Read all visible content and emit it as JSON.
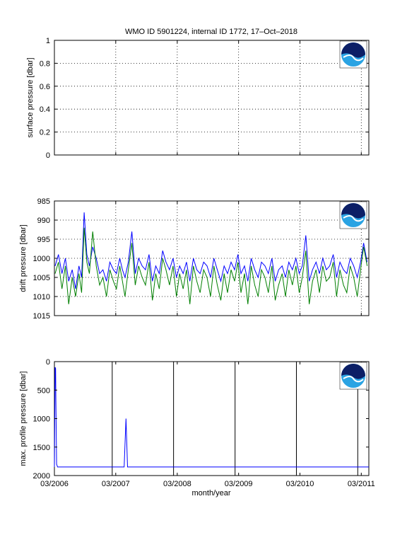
{
  "figure": {
    "title": "WMO ID 5901224, internal ID 1772, 17–Oct–2018",
    "xlabel": "month/year",
    "x_tick_labels": [
      "03/2006",
      "03/2007",
      "03/2008",
      "03/2009",
      "03/2010",
      "03/2011"
    ]
  },
  "colors": {
    "series_blue": "#0000ff",
    "series_green": "#007f00",
    "grid": "#000000",
    "logo_dark": "#0c1f66",
    "logo_light": "#2aa3e3"
  },
  "chart_data": [
    {
      "type": "line",
      "panel": "surface",
      "ylabel": "surface pressure [dbar]",
      "ylim": [
        0,
        1
      ],
      "y_ticks": [
        0,
        0.2,
        0.4,
        0.6,
        0.8,
        1
      ],
      "y_tick_labels": [
        "0",
        "0.2",
        "0.4",
        "0.6",
        "0.8",
        "1"
      ],
      "xlim": [
        "2006-03-01",
        "2011-04-15"
      ],
      "x_ticks": [
        "2006-03-01",
        "2007-03-01",
        "2008-03-01",
        "2009-03-01",
        "2010-03-01",
        "2011-03-01"
      ],
      "grid": true,
      "series": []
    },
    {
      "type": "line",
      "panel": "drift",
      "ylabel": "drift pressure [dbar]",
      "ylim": [
        1015,
        985
      ],
      "y_ticks": [
        985,
        990,
        995,
        1000,
        1005,
        1010,
        1015
      ],
      "y_tick_labels": [
        "985",
        "990",
        "995",
        "1000",
        "1005",
        "1010",
        "1015"
      ],
      "xlim": [
        "2006-03-01",
        "2011-04-15"
      ],
      "x_ticks": [
        "2006-03-01",
        "2007-03-01",
        "2008-03-01",
        "2009-03-01",
        "2010-03-01",
        "2011-03-01"
      ],
      "grid": true,
      "series": [
        {
          "color": "blue",
          "x": [
            "2006-03-05",
            "2006-03-25",
            "2006-04-15",
            "2006-05-05",
            "2006-05-25",
            "2006-06-15",
            "2006-07-05",
            "2006-07-25",
            "2006-08-10",
            "2006-08-25",
            "2006-09-10",
            "2006-09-25",
            "2006-10-15",
            "2006-11-05",
            "2006-11-25",
            "2006-12-15",
            "2007-01-05",
            "2007-01-25",
            "2007-02-15",
            "2007-03-05",
            "2007-03-25",
            "2007-04-10",
            "2007-04-25",
            "2007-05-15",
            "2007-06-05",
            "2007-06-25",
            "2007-07-15",
            "2007-08-05",
            "2007-08-25",
            "2007-09-15",
            "2007-10-05",
            "2007-10-25",
            "2007-11-15",
            "2007-12-05",
            "2007-12-25",
            "2008-01-15",
            "2008-02-05",
            "2008-02-25",
            "2008-03-15",
            "2008-04-05",
            "2008-04-25",
            "2008-05-15",
            "2008-06-05",
            "2008-06-25",
            "2008-07-15",
            "2008-08-05",
            "2008-08-25",
            "2008-09-15",
            "2008-10-05",
            "2008-10-25",
            "2008-11-15",
            "2008-12-05",
            "2008-12-25",
            "2009-01-15",
            "2009-02-05",
            "2009-02-25",
            "2009-03-15",
            "2009-04-05",
            "2009-04-25",
            "2009-05-15",
            "2009-06-05",
            "2009-06-25",
            "2009-07-15",
            "2009-08-05",
            "2009-08-25",
            "2009-09-15",
            "2009-10-05",
            "2009-10-25",
            "2009-11-15",
            "2009-12-05",
            "2009-12-25",
            "2010-01-15",
            "2010-02-05",
            "2010-02-25",
            "2010-03-15",
            "2010-04-05",
            "2010-04-25",
            "2010-05-15",
            "2010-06-05",
            "2010-06-25",
            "2010-07-15",
            "2010-08-05",
            "2010-08-25",
            "2010-09-15",
            "2010-10-05",
            "2010-10-25",
            "2010-11-15",
            "2010-12-05",
            "2010-12-25",
            "2011-01-15",
            "2011-02-05",
            "2011-02-25",
            "2011-03-15",
            "2011-04-05"
          ],
          "y": [
            1002,
            999,
            1004,
            1000,
            1006,
            1003,
            1008,
            1002,
            1005,
            988,
            999,
            1002,
            997,
            1000,
            1004,
            1003,
            1006,
            1001,
            1003,
            1004,
            1000,
            1003,
            1005,
            1001,
            993,
            1004,
            1000,
            1002,
            1003,
            999,
            1006,
            1002,
            1004,
            998,
            1001,
            1003,
            1000,
            1005,
            1002,
            1004,
            1001,
            1006,
            1000,
            1003,
            1004,
            1001,
            1002,
            1005,
            1000,
            1003,
            1006,
            1002,
            1004,
            1001,
            1003,
            999,
            1004,
            1002,
            1006,
            1000,
            1003,
            1005,
            1001,
            1002,
            1004,
            1000,
            1006,
            1003,
            1002,
            1005,
            1001,
            1003,
            1000,
            1004,
            1002,
            994,
            1006,
            1003,
            1001,
            1004,
            1000,
            1003,
            1002,
            999,
            1005,
            1001,
            1003,
            1004,
            1000,
            1002,
            1005,
            1001,
            996,
            1001
          ]
        },
        {
          "color": "green",
          "x": [
            "2006-03-05",
            "2006-03-25",
            "2006-04-15",
            "2006-05-05",
            "2006-05-25",
            "2006-06-15",
            "2006-07-05",
            "2006-07-25",
            "2006-08-10",
            "2006-08-25",
            "2006-09-10",
            "2006-09-25",
            "2006-10-15",
            "2006-11-05",
            "2006-11-25",
            "2006-12-15",
            "2007-01-05",
            "2007-01-25",
            "2007-02-15",
            "2007-03-05",
            "2007-03-25",
            "2007-04-10",
            "2007-04-25",
            "2007-05-15",
            "2007-06-05",
            "2007-06-25",
            "2007-07-15",
            "2007-08-05",
            "2007-08-25",
            "2007-09-15",
            "2007-10-05",
            "2007-10-25",
            "2007-11-15",
            "2007-12-05",
            "2007-12-25",
            "2008-01-15",
            "2008-02-05",
            "2008-02-25",
            "2008-03-15",
            "2008-04-05",
            "2008-04-25",
            "2008-05-15",
            "2008-06-05",
            "2008-06-25",
            "2008-07-15",
            "2008-08-05",
            "2008-08-25",
            "2008-09-15",
            "2008-10-05",
            "2008-10-25",
            "2008-11-15",
            "2008-12-05",
            "2008-12-25",
            "2009-01-15",
            "2009-02-05",
            "2009-02-25",
            "2009-03-15",
            "2009-04-05",
            "2009-04-25",
            "2009-05-15",
            "2009-06-05",
            "2009-06-25",
            "2009-07-15",
            "2009-08-05",
            "2009-08-25",
            "2009-09-15",
            "2009-10-05",
            "2009-10-25",
            "2009-11-15",
            "2009-12-05",
            "2009-12-25",
            "2010-01-15",
            "2010-02-05",
            "2010-02-25",
            "2010-03-15",
            "2010-04-05",
            "2010-04-25",
            "2010-05-15",
            "2010-06-05",
            "2010-06-25",
            "2010-07-15",
            "2010-08-05",
            "2010-08-25",
            "2010-09-15",
            "2010-10-05",
            "2010-10-25",
            "2010-11-15",
            "2010-12-05",
            "2010-12-25",
            "2011-01-15",
            "2011-02-05",
            "2011-02-25",
            "2011-03-15",
            "2011-04-05"
          ],
          "y": [
            1004,
            1001,
            1008,
            1002,
            1012,
            1005,
            1010,
            1004,
            1009,
            992,
            1001,
            1004,
            993,
            1002,
            1007,
            1005,
            1010,
            1003,
            1006,
            1008,
            1002,
            1006,
            1010,
            1003,
            996,
            1007,
            1002,
            1005,
            1007,
            1001,
            1011,
            1004,
            1008,
            1000,
            1003,
            1007,
            1002,
            1010,
            1004,
            1008,
            1003,
            1012,
            1002,
            1006,
            1009,
            1003,
            1005,
            1010,
            1002,
            1007,
            1011,
            1004,
            1009,
            1003,
            1006,
            1001,
            1009,
            1004,
            1012,
            1002,
            1007,
            1010,
            1003,
            1005,
            1009,
            1002,
            1011,
            1007,
            1004,
            1010,
            1003,
            1007,
            1002,
            1009,
            1005,
            998,
            1012,
            1006,
            1003,
            1009,
            1002,
            1006,
            1005,
            1001,
            1010,
            1003,
            1007,
            1009,
            1002,
            1005,
            1010,
            1003,
            997,
            1002
          ]
        }
      ]
    },
    {
      "type": "line",
      "panel": "profile",
      "ylabel": "max. profile pressure [dbar]",
      "ylim": [
        2000,
        0
      ],
      "y_ticks": [
        0,
        500,
        1000,
        1500,
        2000
      ],
      "y_tick_labels": [
        "0",
        "500",
        "1000",
        "1500",
        "2000"
      ],
      "xlim": [
        "2006-03-01",
        "2011-04-15"
      ],
      "x_ticks": [
        "2006-03-01",
        "2007-03-01",
        "2008-03-01",
        "2009-03-01",
        "2010-03-01",
        "2011-03-01"
      ],
      "grid": false,
      "vertical_lines": [
        "2007-02-08",
        "2008-02-08",
        "2009-02-08",
        "2010-02-08",
        "2011-02-08"
      ],
      "series": [
        {
          "color": "blue",
          "x": [
            "2006-03-01",
            "2006-03-05",
            "2006-03-08",
            "2006-03-10",
            "2006-03-14",
            "2006-03-20",
            "2007-04-01",
            "2007-04-20",
            "2007-05-01",
            "2007-05-10",
            "2007-05-20",
            "2011-04-15"
          ],
          "y": [
            1850,
            100,
            120,
            700,
            1800,
            1850,
            1850,
            1850,
            1000,
            1850,
            1850,
            1850
          ]
        }
      ]
    }
  ]
}
